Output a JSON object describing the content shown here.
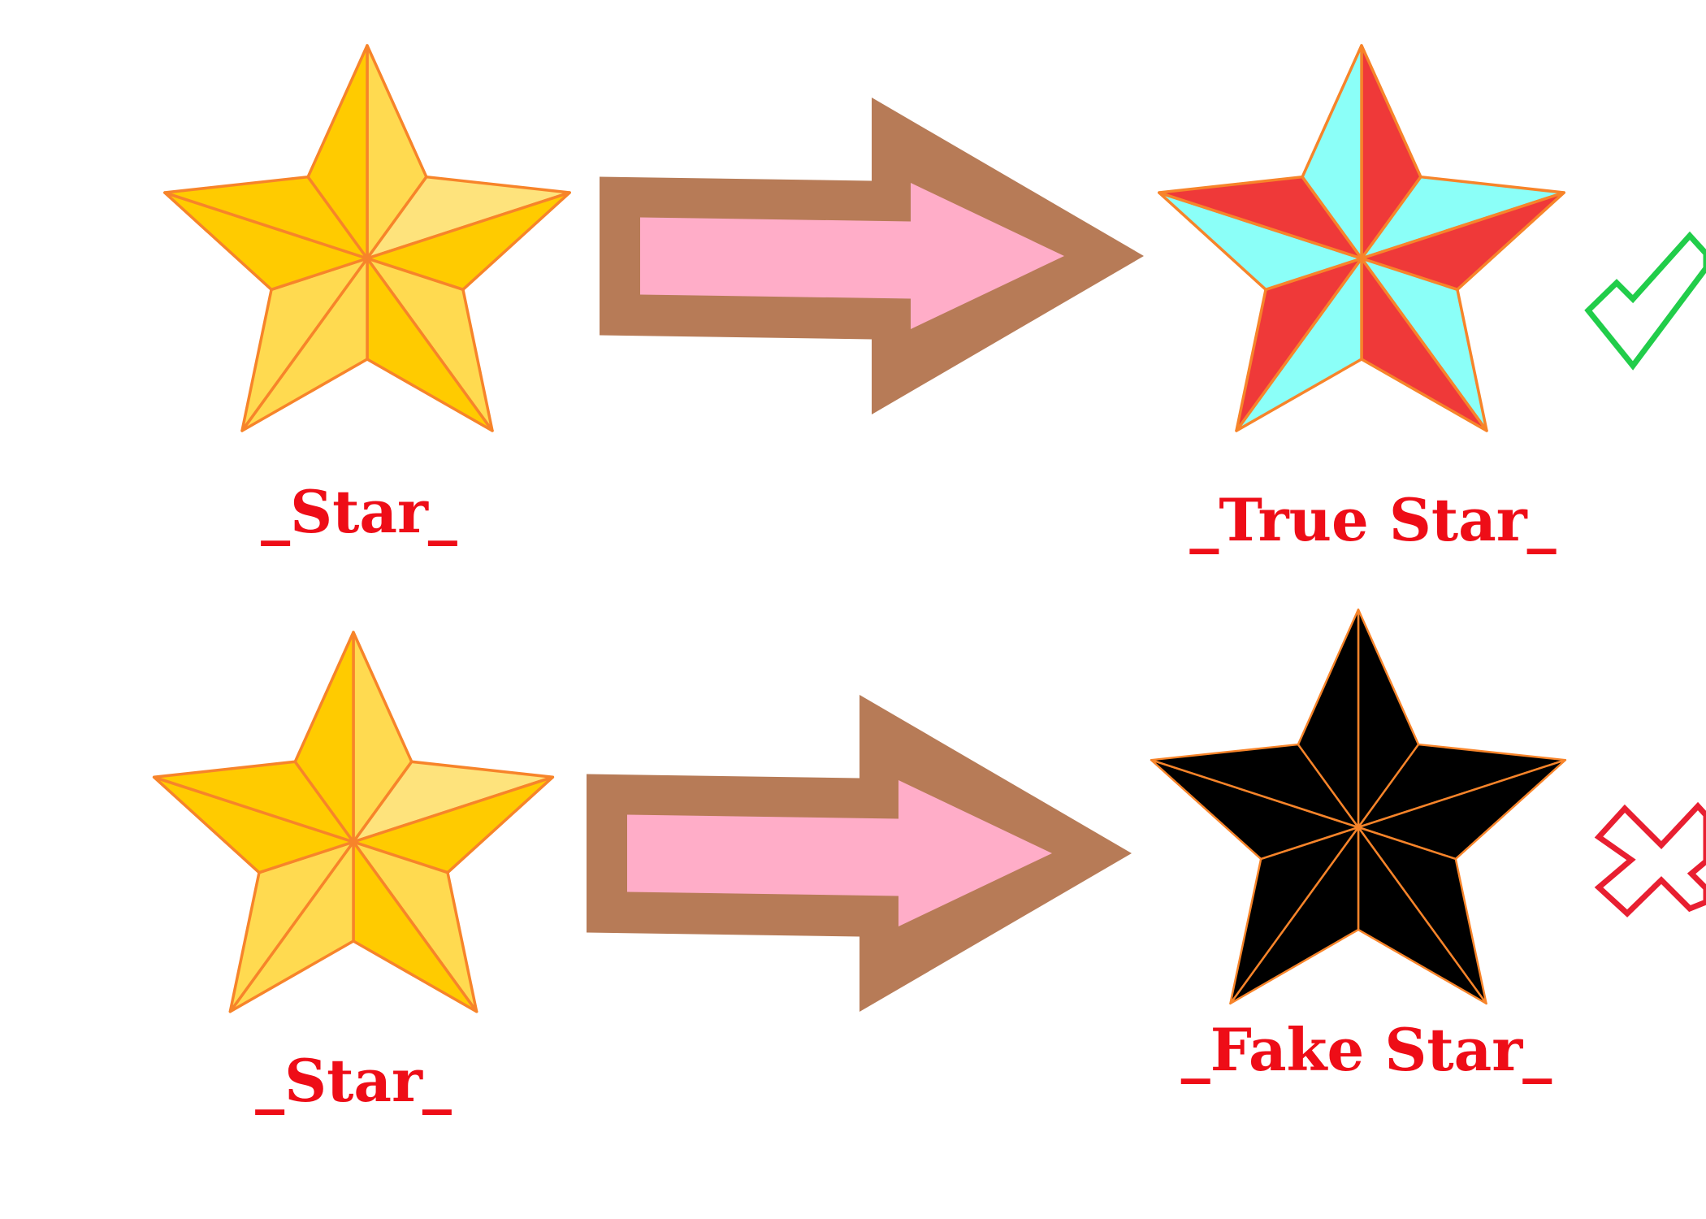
{
  "colors": {
    "stroke": "#f7842a",
    "star_light": "#fee37c",
    "star_mid": "#ffda50",
    "star_dark": "#ffcb00",
    "true_star_cyan": "#8bfff8",
    "true_star_red": "#ef3939",
    "fake_star_black": "#000000",
    "arrow_outer": "#b77b57",
    "arrow_inner": "#ffadc8",
    "label_red": "#ee0d17",
    "check_green": "#21cd4a",
    "cross_red": "#e81f31"
  },
  "rows": [
    {
      "left_label": "_Star_",
      "right_label": "_True Star_",
      "verdict_icon": "check-mark-icon"
    },
    {
      "left_label": "_Star_",
      "right_label": "_Fake Star_",
      "verdict_icon": "cross-mark-icon"
    }
  ]
}
